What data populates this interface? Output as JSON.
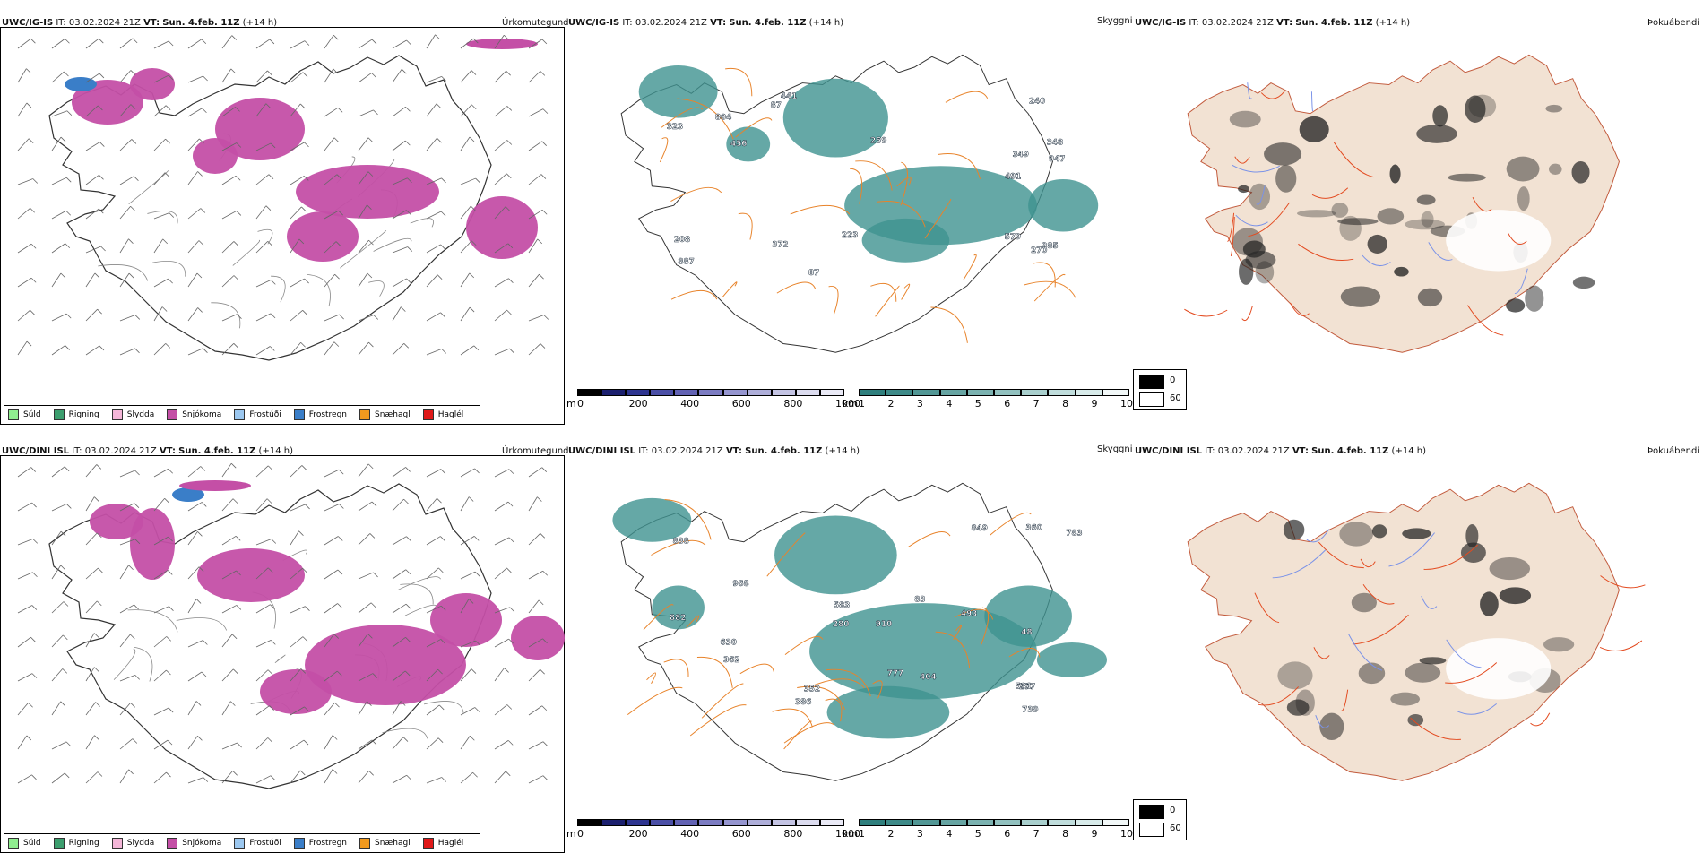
{
  "top": {
    "precip": {
      "model": "UWC/IG-IS",
      "it_label": "IT:",
      "it": "03.02.2024 21Z",
      "vt_label": "VT:",
      "vt": "Sun. 4.feb. 11Z",
      "lead": "(+14 h)",
      "title": "Úrkomutegund"
    },
    "vis": {
      "model": "UWC/IG-IS",
      "it_label": "IT:",
      "it": "03.02.2024 21Z",
      "vt_label": "VT:",
      "vt": "Sun. 4.feb. 11Z",
      "lead": "(+14 h)",
      "title": "Skyggni"
    },
    "fog": {
      "model": "UWC/IG-IS",
      "it_label": "IT:",
      "it": "03.02.2024 21Z",
      "vt_label": "VT:",
      "vt": "Sun. 4.feb. 11Z",
      "lead": "(+14 h)",
      "title": "Þokuábendi"
    },
    "vis_labels": [
      "579",
      "348",
      "985",
      "259",
      "887",
      "441",
      "349",
      "372",
      "240",
      "456",
      "947",
      "323",
      "491",
      "87",
      "208",
      "804",
      "270",
      "87",
      "223"
    ]
  },
  "bottom": {
    "precip": {
      "model": "UWC/DINI ISL",
      "it_label": "IT:",
      "it": "03.02.2024 21Z",
      "vt_label": "VT:",
      "vt": "Sun. 4.feb. 11Z",
      "lead": "(+14 h)",
      "title": "Úrkomutegund"
    },
    "vis": {
      "model": "UWC/DINI ISL",
      "it_label": "IT:",
      "it": "03.02.2024 21Z",
      "vt_label": "VT:",
      "vt": "Sun. 4.feb. 11Z",
      "lead": "(+14 h)",
      "title": "Skyggni"
    },
    "fog": {
      "model": "UWC/DINI ISL",
      "it_label": "IT:",
      "it": "03.02.2024 21Z",
      "vt_label": "VT:",
      "vt": "Sun. 4.feb. 11Z",
      "lead": "(+14 h)",
      "title": "Þokuábendi"
    },
    "vis_labels": [
      "48",
      "493",
      "277",
      "838",
      "531",
      "360",
      "583",
      "783",
      "386",
      "352",
      "280",
      "777",
      "362",
      "910",
      "739",
      "968",
      "83",
      "404",
      "849",
      "882",
      "630"
    ]
  },
  "legend": [
    {
      "label": "Súld",
      "color": "#90ee90"
    },
    {
      "label": "Rigning",
      "color": "#3c9e6e"
    },
    {
      "label": "Slydda",
      "color": "#f4b6d8"
    },
    {
      "label": "Snjókoma",
      "color": "#c44fa6"
    },
    {
      "label": "Frostúði",
      "color": "#9cc8f0"
    },
    {
      "label": "Frostregn",
      "color": "#3a7ec8"
    },
    {
      "label": "Snæhagl",
      "color": "#f29a1e"
    },
    {
      "label": "Haglél",
      "color": "#e01919"
    }
  ],
  "colorbar_m": {
    "unit": "m",
    "ticks": [
      "0",
      "200",
      "400",
      "600",
      "800",
      "1000"
    ]
  },
  "colorbar_km": {
    "unit": "km",
    "ticks": [
      "1",
      "2",
      "3",
      "4",
      "5",
      "6",
      "7",
      "8",
      "9",
      "10"
    ]
  },
  "fog_legend": {
    "black": "0",
    "white": "60"
  },
  "colors": {
    "snow": "#c44fa6",
    "freezing": "#3a7ec8",
    "teal": "#3f9290",
    "roads": "#e8832a",
    "land": "#f2e2d3"
  }
}
